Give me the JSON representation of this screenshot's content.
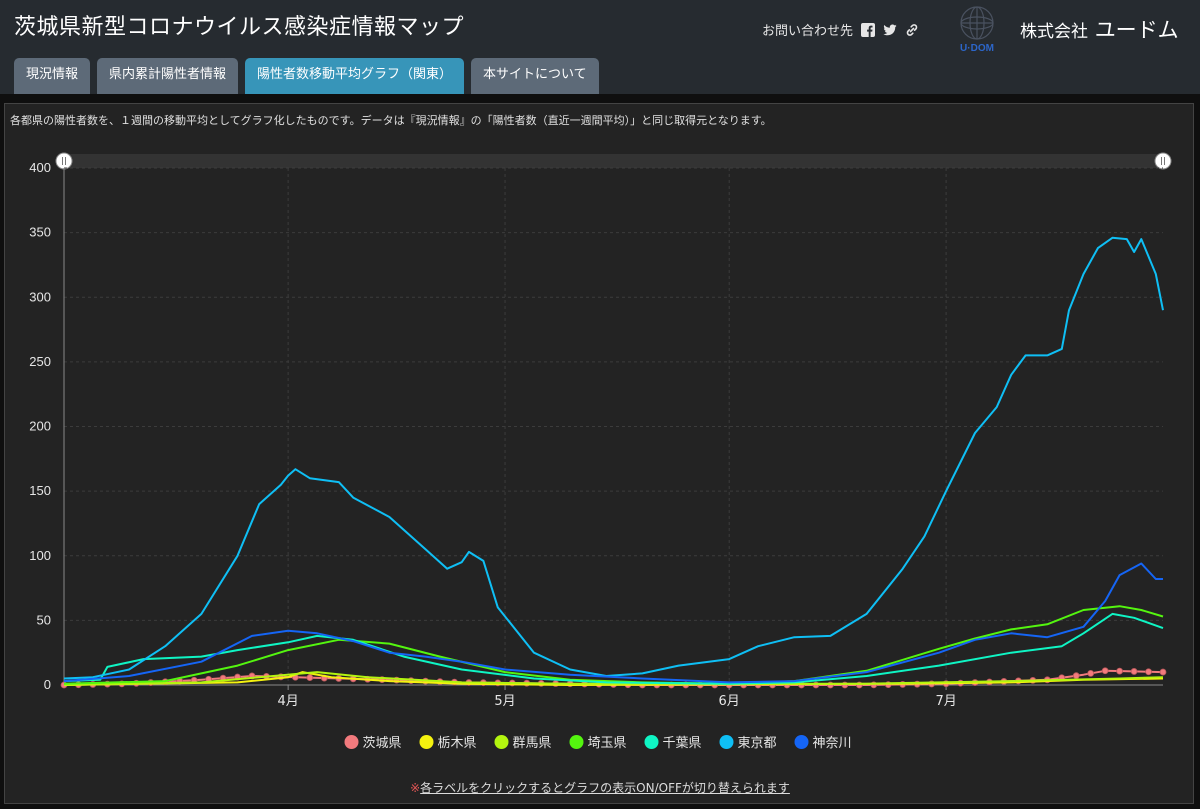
{
  "header": {
    "title": "茨城県新型コロナウイルス感染症情報マップ",
    "contact_label": "お問い合わせ先",
    "logo_text": "U·DOM",
    "company_prefix": "株式会社",
    "company_name": "ユードム",
    "icons": [
      "facebook-icon",
      "twitter-icon",
      "link-icon"
    ]
  },
  "tabs": [
    {
      "label": "現況情報",
      "active": false
    },
    {
      "label": "県内累計陽性者情報",
      "active": false
    },
    {
      "label": "陽性者数移動平均グラフ（関東）",
      "active": true
    },
    {
      "label": "本サイトについて",
      "active": false
    }
  ],
  "description": "各都県の陽性者数を、１週間の移動平均としてグラフ化したものです。データは『現況情報』の「陽性者数（直近一週間平均）」と同じ取得元となります。",
  "note": {
    "mark": "※",
    "text": "各ラベルをクリックするとグラフの表示ON/OFFが切り替えられます"
  },
  "colors": {
    "header_bg": "#262b30",
    "tab_bg": "#5d6a78",
    "tab_active_bg": "#3795b9",
    "panel_bg": "#232323"
  },
  "chart_data": {
    "type": "line",
    "title": "",
    "xlabel": "",
    "ylabel": "",
    "ylim": [
      0,
      400
    ],
    "yticks": [
      0,
      50,
      100,
      150,
      200,
      250,
      300,
      350,
      400
    ],
    "x_start": "2020-03-01",
    "x_end": "2020-07-31",
    "xticks": [
      {
        "label": "4月",
        "date": "2020-04-01"
      },
      {
        "label": "5月",
        "date": "2020-05-01"
      },
      {
        "label": "6月",
        "date": "2020-06-01"
      },
      {
        "label": "7月",
        "date": "2020-07-01"
      }
    ],
    "grid": true,
    "legend": "bottom",
    "series": [
      {
        "name": "茨城県",
        "color": "#f27a7d",
        "markers": true,
        "points": [
          [
            "2020-03-01",
            0
          ],
          [
            "2020-03-10",
            1
          ],
          [
            "2020-03-20",
            4
          ],
          [
            "2020-03-27",
            7
          ],
          [
            "2020-04-02",
            6
          ],
          [
            "2020-04-15",
            4
          ],
          [
            "2020-04-25",
            2
          ],
          [
            "2020-05-10",
            1
          ],
          [
            "2020-05-20",
            0
          ],
          [
            "2020-06-20",
            0
          ],
          [
            "2020-07-01",
            1
          ],
          [
            "2020-07-10",
            3
          ],
          [
            "2020-07-15",
            4
          ],
          [
            "2020-07-20",
            8
          ],
          [
            "2020-07-23",
            11
          ],
          [
            "2020-07-31",
            10
          ]
        ]
      },
      {
        "name": "栃木県",
        "color": "#f5f20f",
        "markers": false,
        "points": [
          [
            "2020-03-01",
            0
          ],
          [
            "2020-03-25",
            2
          ],
          [
            "2020-04-01",
            6
          ],
          [
            "2020-04-03",
            10
          ],
          [
            "2020-04-07",
            6
          ],
          [
            "2020-04-15",
            3
          ],
          [
            "2020-04-25",
            1
          ],
          [
            "2020-05-10",
            0
          ],
          [
            "2020-06-25",
            1
          ],
          [
            "2020-07-10",
            2
          ],
          [
            "2020-07-20",
            4
          ],
          [
            "2020-07-31",
            5
          ]
        ]
      },
      {
        "name": "群馬県",
        "color": "#b3f50f",
        "markers": false,
        "points": [
          [
            "2020-03-01",
            0
          ],
          [
            "2020-03-20",
            2
          ],
          [
            "2020-03-28",
            6
          ],
          [
            "2020-04-05",
            10
          ],
          [
            "2020-04-12",
            6
          ],
          [
            "2020-04-25",
            2
          ],
          [
            "2020-05-10",
            1
          ],
          [
            "2020-06-20",
            1
          ],
          [
            "2020-07-10",
            3
          ],
          [
            "2020-07-25",
            5
          ],
          [
            "2020-07-31",
            6
          ]
        ]
      },
      {
        "name": "埼玉県",
        "color": "#54f50f",
        "markers": false,
        "points": [
          [
            "2020-03-01",
            1
          ],
          [
            "2020-03-15",
            3
          ],
          [
            "2020-03-25",
            15
          ],
          [
            "2020-04-01",
            27
          ],
          [
            "2020-04-08",
            35
          ],
          [
            "2020-04-15",
            32
          ],
          [
            "2020-04-22",
            22
          ],
          [
            "2020-05-01",
            10
          ],
          [
            "2020-05-10",
            4
          ],
          [
            "2020-05-20",
            2
          ],
          [
            "2020-06-01",
            1
          ],
          [
            "2020-06-10",
            3
          ],
          [
            "2020-06-20",
            11
          ],
          [
            "2020-06-30",
            28
          ],
          [
            "2020-07-05",
            36
          ],
          [
            "2020-07-10",
            43
          ],
          [
            "2020-07-15",
            47
          ],
          [
            "2020-07-20",
            58
          ],
          [
            "2020-07-25",
            61
          ],
          [
            "2020-07-28",
            58
          ],
          [
            "2020-07-31",
            53
          ]
        ]
      },
      {
        "name": "千葉県",
        "color": "#0ff5c4",
        "markers": false,
        "points": [
          [
            "2020-03-01",
            3
          ],
          [
            "2020-03-06",
            4
          ],
          [
            "2020-03-07",
            14
          ],
          [
            "2020-03-12",
            20
          ],
          [
            "2020-03-20",
            22
          ],
          [
            "2020-03-25",
            27
          ],
          [
            "2020-04-01",
            33
          ],
          [
            "2020-04-05",
            38
          ],
          [
            "2020-04-10",
            35
          ],
          [
            "2020-04-17",
            22
          ],
          [
            "2020-04-25",
            12
          ],
          [
            "2020-05-05",
            5
          ],
          [
            "2020-05-15",
            2
          ],
          [
            "2020-06-01",
            1
          ],
          [
            "2020-06-10",
            2
          ],
          [
            "2020-06-20",
            7
          ],
          [
            "2020-06-30",
            15
          ],
          [
            "2020-07-10",
            25
          ],
          [
            "2020-07-17",
            30
          ],
          [
            "2020-07-20",
            40
          ],
          [
            "2020-07-24",
            55
          ],
          [
            "2020-07-27",
            52
          ],
          [
            "2020-07-31",
            44
          ]
        ]
      },
      {
        "name": "東京都",
        "color": "#0fbff5",
        "markers": false,
        "points": [
          [
            "2020-03-01",
            5
          ],
          [
            "2020-03-05",
            6
          ],
          [
            "2020-03-10",
            12
          ],
          [
            "2020-03-15",
            30
          ],
          [
            "2020-03-20",
            55
          ],
          [
            "2020-03-25",
            100
          ],
          [
            "2020-03-28",
            140
          ],
          [
            "2020-03-31",
            155
          ],
          [
            "2020-04-01",
            162
          ],
          [
            "2020-04-02",
            167
          ],
          [
            "2020-04-04",
            160
          ],
          [
            "2020-04-08",
            157
          ],
          [
            "2020-04-10",
            145
          ],
          [
            "2020-04-15",
            130
          ],
          [
            "2020-04-20",
            105
          ],
          [
            "2020-04-23",
            90
          ],
          [
            "2020-04-25",
            95
          ],
          [
            "2020-04-26",
            103
          ],
          [
            "2020-04-28",
            96
          ],
          [
            "2020-04-30",
            60
          ],
          [
            "2020-05-05",
            25
          ],
          [
            "2020-05-10",
            12
          ],
          [
            "2020-05-15",
            7
          ],
          [
            "2020-05-20",
            9
          ],
          [
            "2020-05-25",
            15
          ],
          [
            "2020-06-01",
            20
          ],
          [
            "2020-06-05",
            30
          ],
          [
            "2020-06-10",
            37
          ],
          [
            "2020-06-15",
            38
          ],
          [
            "2020-06-20",
            55
          ],
          [
            "2020-06-25",
            90
          ],
          [
            "2020-06-28",
            115
          ],
          [
            "2020-07-01",
            150
          ],
          [
            "2020-07-05",
            195
          ],
          [
            "2020-07-08",
            215
          ],
          [
            "2020-07-10",
            240
          ],
          [
            "2020-07-12",
            255
          ],
          [
            "2020-07-15",
            255
          ],
          [
            "2020-07-17",
            260
          ],
          [
            "2020-07-18",
            290
          ],
          [
            "2020-07-20",
            318
          ],
          [
            "2020-07-22",
            338
          ],
          [
            "2020-07-24",
            346
          ],
          [
            "2020-07-26",
            345
          ],
          [
            "2020-07-27",
            335
          ],
          [
            "2020-07-28",
            345
          ],
          [
            "2020-07-30",
            318
          ],
          [
            "2020-07-31",
            290
          ]
        ]
      },
      {
        "name": "神奈川",
        "color": "#1565f5",
        "markers": false,
        "points": [
          [
            "2020-03-01",
            3
          ],
          [
            "2020-03-10",
            7
          ],
          [
            "2020-03-20",
            18
          ],
          [
            "2020-03-27",
            38
          ],
          [
            "2020-04-01",
            42
          ],
          [
            "2020-04-05",
            40
          ],
          [
            "2020-04-10",
            34
          ],
          [
            "2020-04-15",
            25
          ],
          [
            "2020-04-20",
            22
          ],
          [
            "2020-04-25",
            18
          ],
          [
            "2020-05-01",
            12
          ],
          [
            "2020-05-10",
            8
          ],
          [
            "2020-05-20",
            5
          ],
          [
            "2020-06-01",
            2
          ],
          [
            "2020-06-10",
            3
          ],
          [
            "2020-06-20",
            10
          ],
          [
            "2020-06-30",
            25
          ],
          [
            "2020-07-05",
            35
          ],
          [
            "2020-07-10",
            40
          ],
          [
            "2020-07-15",
            37
          ],
          [
            "2020-07-20",
            45
          ],
          [
            "2020-07-23",
            65
          ],
          [
            "2020-07-25",
            85
          ],
          [
            "2020-07-28",
            94
          ],
          [
            "2020-07-30",
            82
          ],
          [
            "2020-07-31",
            82
          ]
        ]
      }
    ]
  }
}
